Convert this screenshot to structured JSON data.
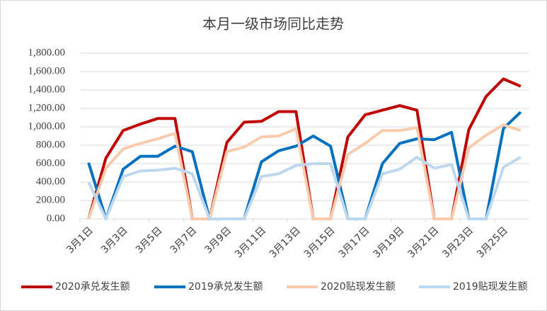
{
  "chart_data": {
    "type": "line",
    "title": "本月一级市场同比走势",
    "categories": [
      "3月1日",
      null,
      "3月3日",
      null,
      "3月5日",
      null,
      "3月7日",
      null,
      "3月9日",
      null,
      "3月11日",
      null,
      "3月13日",
      null,
      "3月15日",
      null,
      "3月17日",
      null,
      "3月19日",
      null,
      "3月21日",
      null,
      "3月23日",
      null,
      "3月25日",
      null
    ],
    "series": [
      {
        "name": "2020承兑发生额",
        "color": "#c00000",
        "values": [
          0,
          660,
          960,
          1030,
          1090,
          1090,
          0,
          0,
          830,
          1050,
          1060,
          1165,
          1165,
          0,
          0,
          890,
          1130,
          1180,
          1230,
          1180,
          0,
          0,
          970,
          1330,
          1520,
          1440
        ]
      },
      {
        "name": "2019承兑发生额",
        "color": "#0070c0",
        "values": [
          610,
          0,
          540,
          680,
          680,
          790,
          730,
          0,
          0,
          0,
          620,
          740,
          790,
          900,
          790,
          0,
          0,
          600,
          820,
          870,
          860,
          940,
          0,
          0,
          980,
          1160
        ]
      },
      {
        "name": "2020贴现发生额",
        "color": "#f8cbad",
        "values": [
          0,
          550,
          760,
          820,
          870,
          930,
          0,
          0,
          730,
          780,
          890,
          900,
          980,
          0,
          0,
          700,
          820,
          960,
          960,
          990,
          0,
          0,
          770,
          910,
          1020,
          960
        ]
      },
      {
        "name": "2019贴现发生额",
        "color": "#bdd7ee",
        "values": [
          400,
          0,
          460,
          520,
          530,
          550,
          490,
          0,
          0,
          0,
          460,
          490,
          580,
          600,
          600,
          0,
          0,
          490,
          540,
          670,
          550,
          590,
          0,
          0,
          560,
          670
        ]
      }
    ],
    "ylim": [
      0,
      1800
    ],
    "yticks": [
      {
        "value": 0,
        "label": "0.00"
      },
      {
        "value": 200,
        "label": "200.00"
      },
      {
        "value": 400,
        "label": "400.00"
      },
      {
        "value": 600,
        "label": "600.00"
      },
      {
        "value": 800,
        "label": "800.00"
      },
      {
        "value": 1000,
        "label": "1,000.00"
      },
      {
        "value": 1200,
        "label": "1,200.00"
      },
      {
        "value": 1400,
        "label": "1,400.00"
      },
      {
        "value": 1600,
        "label": "1,600.00"
      },
      {
        "value": 1800,
        "label": "1,800.00"
      }
    ],
    "grid": true
  }
}
